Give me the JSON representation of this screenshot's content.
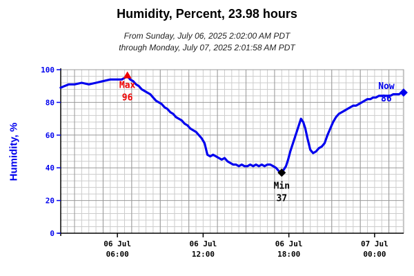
{
  "chart_data": {
    "type": "line",
    "title": "Humidity, Percent, 23.98 hours",
    "subtitle_lines": [
      "From Sunday, July 06, 2025 2:02:00 AM PDT",
      "through Monday, July 07, 2025 2:01:58 AM PDT"
    ],
    "ylabel": "Humidity, %",
    "xlabel": "",
    "xlim": [
      2.0333,
      26.0333
    ],
    "ylim": [
      0,
      100
    ],
    "y_ticks": [
      0,
      20,
      40,
      60,
      80,
      100
    ],
    "x_ticks": [
      {
        "x": 6,
        "line1": "06 Jul",
        "line2": "06:00"
      },
      {
        "x": 12,
        "line1": "06 Jul",
        "line2": "12:00"
      },
      {
        "x": 18,
        "line1": "06 Jul",
        "line2": "18:00"
      },
      {
        "x": 24,
        "line1": "07 Jul",
        "line2": "00:00"
      }
    ],
    "grid": true,
    "series": [
      {
        "color": "#0000ee",
        "x": [
          2.03,
          2.3,
          2.6,
          3.0,
          3.5,
          4.0,
          4.5,
          5.0,
          5.5,
          6.0,
          6.3,
          6.5,
          6.7,
          6.9,
          7.1,
          7.3,
          7.5,
          7.7,
          7.9,
          8.1,
          8.3,
          8.5,
          8.7,
          8.9,
          9.1,
          9.3,
          9.5,
          9.7,
          9.9,
          10.1,
          10.3,
          10.5,
          10.7,
          10.9,
          11.1,
          11.3,
          11.5,
          11.7,
          11.9,
          12.1,
          12.3,
          12.5,
          12.7,
          12.9,
          13.1,
          13.3,
          13.5,
          13.7,
          13.9,
          14.1,
          14.3,
          14.5,
          14.7,
          14.9,
          15.1,
          15.3,
          15.5,
          15.7,
          15.9,
          16.1,
          16.3,
          16.5,
          16.7,
          16.9,
          17.1,
          17.3,
          17.5,
          17.65,
          17.8,
          17.95,
          18.1,
          18.25,
          18.4,
          18.55,
          18.7,
          18.85,
          19.0,
          19.15,
          19.3,
          19.5,
          19.7,
          19.9,
          20.1,
          20.3,
          20.5,
          20.7,
          20.9,
          21.1,
          21.3,
          21.5,
          21.7,
          21.9,
          22.1,
          22.3,
          22.5,
          22.7,
          22.9,
          23.1,
          23.3,
          23.5,
          23.7,
          23.9,
          24.1,
          24.3,
          24.5,
          24.7,
          24.9,
          25.1,
          25.3,
          25.5,
          25.7,
          25.9,
          26.03
        ],
        "values": [
          89,
          90,
          91,
          91,
          92,
          91,
          92,
          93,
          94,
          94,
          94,
          95,
          96,
          94,
          93,
          91,
          90,
          88,
          87,
          86,
          85,
          83,
          81,
          80,
          79,
          77,
          76,
          74,
          73,
          71,
          70,
          69,
          67,
          66,
          64,
          63,
          62,
          60,
          58,
          55,
          48,
          47,
          48,
          47,
          46,
          45,
          46,
          44,
          43,
          42,
          42,
          41,
          42,
          41,
          41,
          42,
          41,
          42,
          41,
          42,
          41,
          42,
          42,
          41,
          40,
          38,
          37,
          39,
          41,
          45,
          50,
          54,
          58,
          62,
          66,
          70,
          68,
          64,
          58,
          51,
          49,
          50,
          52,
          53,
          55,
          60,
          64,
          68,
          71,
          73,
          74,
          75,
          76,
          77,
          78,
          78,
          79,
          80,
          81,
          82,
          82,
          83,
          83,
          84,
          84,
          84,
          84,
          84,
          85,
          85,
          85,
          86,
          86
        ]
      }
    ],
    "annotations": {
      "max": {
        "label": "Max",
        "value": 96,
        "x": 6.7,
        "color": "#ee0000"
      },
      "min": {
        "label": "Min",
        "value": 37,
        "x": 17.5,
        "color": "#000000"
      },
      "now": {
        "label": "Now",
        "value": 86,
        "x": 26.03,
        "color": "#0000ee"
      }
    }
  }
}
